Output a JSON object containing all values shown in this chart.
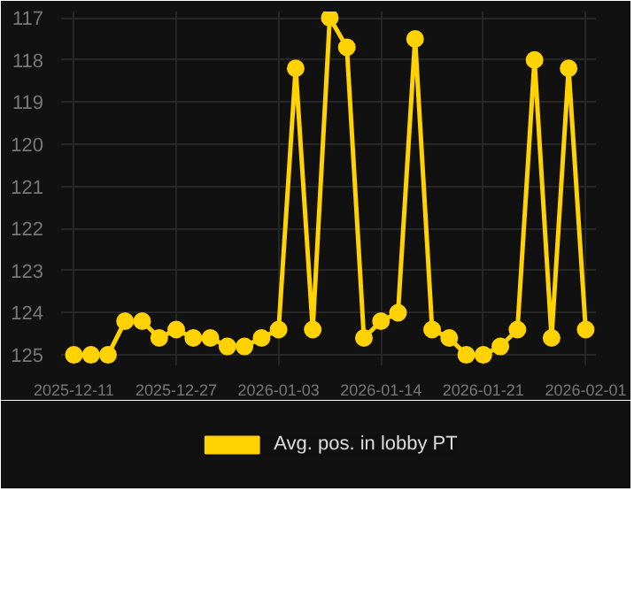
{
  "chart_data": {
    "type": "line",
    "categories": [
      "2025-12-11",
      null,
      null,
      null,
      null,
      null,
      "2025-12-27",
      null,
      null,
      null,
      null,
      null,
      "2026-01-03",
      null,
      null,
      null,
      null,
      null,
      "2026-01-14",
      null,
      null,
      null,
      null,
      null,
      "2026-01-21",
      null,
      null,
      null,
      null,
      null,
      "2026-02-01"
    ],
    "series": [
      {
        "name": "Avg. pos. in lobby PT",
        "color": "#ffd200",
        "values": [
          125.0,
          125.0,
          125.0,
          124.2,
          124.2,
          124.6,
          124.4,
          124.6,
          124.6,
          124.8,
          124.8,
          124.6,
          124.4,
          118.2,
          124.4,
          117.0,
          117.7,
          124.6,
          124.2,
          124.0,
          117.5,
          124.4,
          124.6,
          125.0,
          125.0,
          124.8,
          124.4,
          118.0,
          124.6,
          118.2,
          124.4
        ]
      }
    ],
    "ylim": [
      125.25,
      116.85
    ],
    "yticks": [
      117,
      118,
      119,
      120,
      121,
      122,
      123,
      124,
      125
    ],
    "grid": true,
    "legend": "bottom",
    "marker": "circle",
    "line_style": "solid"
  }
}
